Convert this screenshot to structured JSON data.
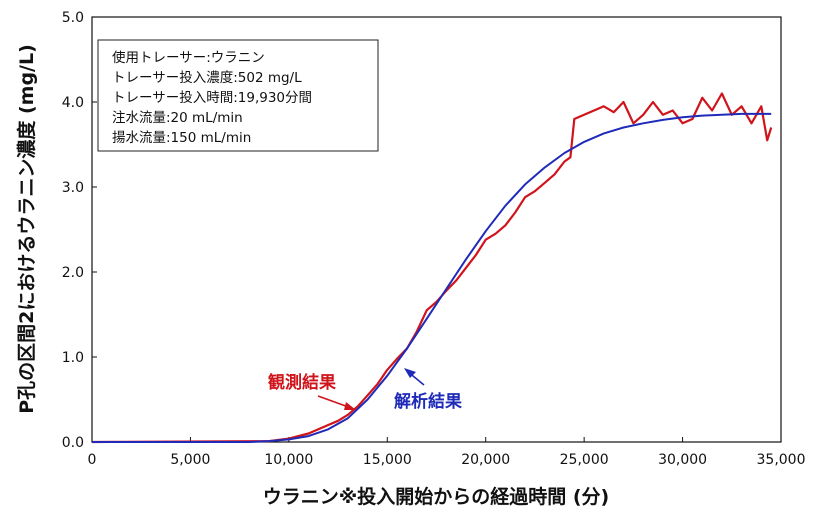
{
  "chart_data": {
    "type": "line",
    "xlabel": "ウラニン※投入開始からの経過時間 (分)",
    "ylabel": "P孔の区間2におけるウラニン濃度 (mg/L)",
    "xlim": [
      0,
      35000
    ],
    "ylim": [
      0,
      5.0
    ],
    "x_ticks": [
      0,
      5000,
      10000,
      15000,
      20000,
      25000,
      30000,
      35000
    ],
    "x_tick_labels": [
      "0",
      "5,000",
      "10,000",
      "15,000",
      "20,000",
      "25,000",
      "30,000",
      "35,000"
    ],
    "y_ticks": [
      0,
      1,
      2,
      3,
      4,
      5
    ],
    "y_tick_labels": [
      "0.0",
      "1.0",
      "2.0",
      "3.0",
      "4.0",
      "5.0"
    ],
    "grid": false,
    "info_box": [
      "使用トレーサー:ウラニン",
      "トレーサー投入濃度:502 mg/L",
      "トレーサー投入時間:19,930分間",
      "注水流量:20 mL/min",
      "揚水流量:150 mL/min"
    ],
    "series": [
      {
        "name": "観測結果",
        "color": "#d0141b",
        "x": [
          0,
          9000,
          10000,
          11000,
          12000,
          12500,
          13000,
          13500,
          14000,
          14500,
          15000,
          15500,
          16000,
          16500,
          17000,
          17500,
          18000,
          18500,
          19000,
          19500,
          20000,
          20500,
          21000,
          21500,
          22000,
          22500,
          23000,
          23500,
          24000,
          24300,
          24500,
          25000,
          25500,
          26000,
          26500,
          27000,
          27500,
          28000,
          28500,
          29000,
          29500,
          30000,
          30500,
          31000,
          31500,
          32000,
          32500,
          33000,
          33500,
          34000,
          34300,
          34500
        ],
        "y": [
          0,
          0.01,
          0.04,
          0.1,
          0.2,
          0.25,
          0.32,
          0.42,
          0.55,
          0.68,
          0.85,
          0.98,
          1.1,
          1.3,
          1.55,
          1.65,
          1.78,
          1.9,
          2.05,
          2.2,
          2.38,
          2.45,
          2.55,
          2.7,
          2.88,
          2.95,
          3.05,
          3.15,
          3.3,
          3.35,
          3.8,
          3.85,
          3.9,
          3.95,
          3.88,
          4.0,
          3.75,
          3.85,
          4.0,
          3.85,
          3.9,
          3.75,
          3.8,
          4.05,
          3.9,
          4.1,
          3.85,
          3.95,
          3.75,
          3.95,
          3.55,
          3.7
        ]
      },
      {
        "name": "解析結果",
        "color": "#1f2bb8",
        "x": [
          0,
          8000,
          9000,
          10000,
          11000,
          12000,
          13000,
          14000,
          15000,
          16000,
          17000,
          18000,
          19000,
          20000,
          21000,
          22000,
          23000,
          24000,
          25000,
          26000,
          27000,
          28000,
          29000,
          30000,
          31000,
          32000,
          33000,
          34000,
          34500
        ],
        "y": [
          0,
          0.0,
          0.01,
          0.03,
          0.07,
          0.15,
          0.28,
          0.5,
          0.78,
          1.1,
          1.45,
          1.8,
          2.15,
          2.48,
          2.78,
          3.03,
          3.23,
          3.4,
          3.53,
          3.63,
          3.7,
          3.75,
          3.79,
          3.82,
          3.84,
          3.85,
          3.86,
          3.86,
          3.86
        ]
      }
    ],
    "annotations": [
      {
        "text": "観測結果",
        "series": "観測結果",
        "at": [
          13500,
          0.42
        ]
      },
      {
        "text": "解析結果",
        "series": "解析結果",
        "at": [
          16000,
          0.85
        ]
      }
    ]
  }
}
